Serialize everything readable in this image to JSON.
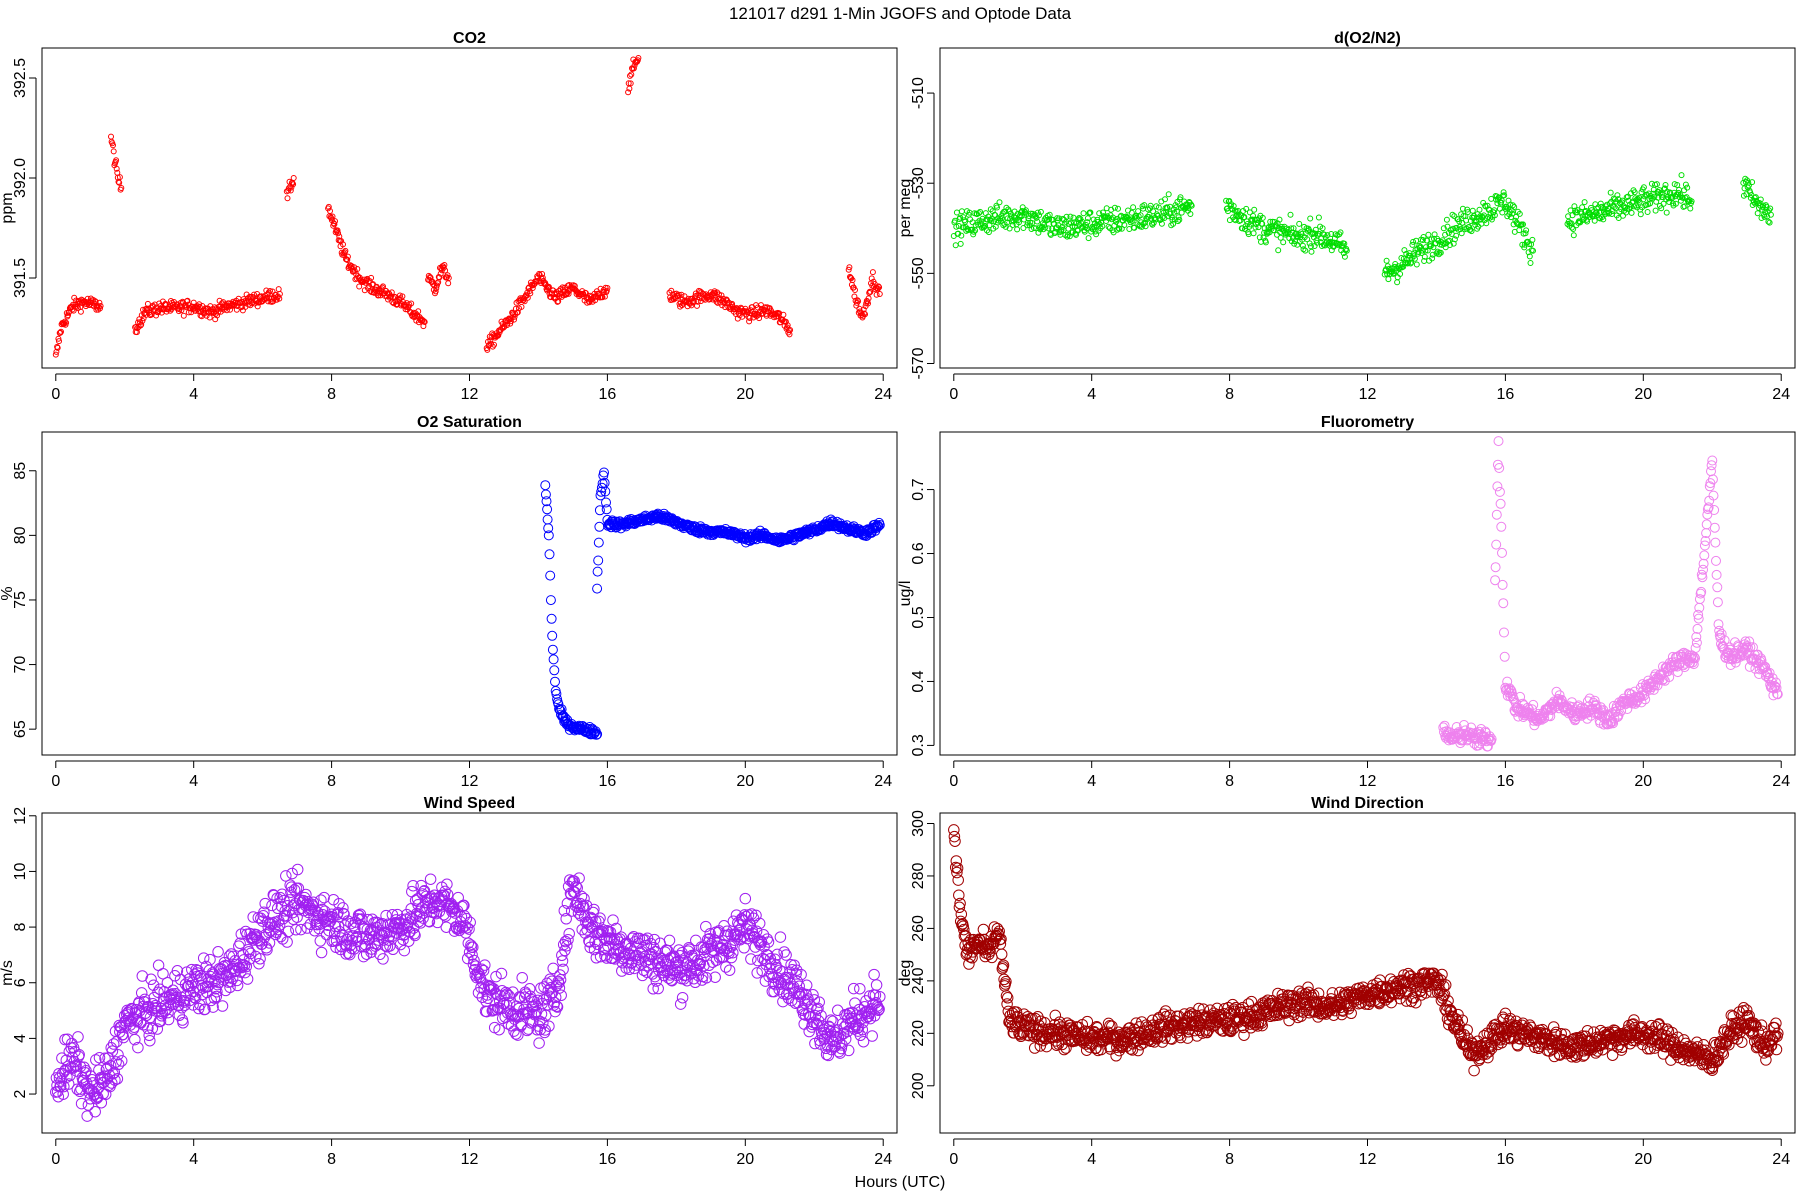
{
  "figure": {
    "title": "121017   d291   1-Min  JGOFS and Optode Data",
    "xlabel": "Hours (UTC)"
  },
  "chart_data": [
    {
      "type": "scatter",
      "title": "CO2",
      "ylabel": "ppm",
      "color": "#ff0000",
      "xlim": [
        -0.4,
        24.4
      ],
      "ylim": [
        391.05,
        392.65
      ],
      "xticks": [
        0,
        4,
        8,
        12,
        16,
        20,
        24
      ],
      "yticks": [
        391.5,
        392.0,
        392.5
      ],
      "ytick_labels": [
        "391.5",
        "392.0",
        "392.5"
      ],
      "series_segments": [
        {
          "x": [
            0,
            0.15,
            0.3,
            0.5,
            0.8,
            1.0,
            1.3
          ],
          "y": [
            391.1,
            391.25,
            391.3,
            391.36,
            391.38,
            391.37,
            391.36
          ]
        },
        {
          "x": [
            1.6,
            1.7,
            1.8,
            1.9
          ],
          "y": [
            392.2,
            392.1,
            392.0,
            391.95
          ]
        },
        {
          "x": [
            2.3,
            2.6,
            3.0,
            3.5,
            4.0,
            4.5,
            5.0,
            5.5,
            6.0,
            6.5
          ],
          "y": [
            391.25,
            391.33,
            391.35,
            391.35,
            391.36,
            391.33,
            391.36,
            391.38,
            391.4,
            391.42
          ]
        },
        {
          "x": [
            6.7,
            6.8,
            6.9
          ],
          "y": [
            391.9,
            391.95,
            392.0
          ]
        },
        {
          "x": [
            7.9,
            8.1,
            8.4,
            8.8,
            9.2,
            9.6,
            10.0,
            10.4,
            10.7
          ],
          "y": [
            391.85,
            391.75,
            391.6,
            391.5,
            391.45,
            391.42,
            391.38,
            391.32,
            391.28
          ]
        },
        {
          "x": [
            10.8,
            11.0,
            11.2,
            11.4
          ],
          "y": [
            391.5,
            391.45,
            391.55,
            391.5
          ]
        },
        {
          "x": [
            12.5,
            12.8,
            13.2,
            13.6,
            14.0,
            14.5,
            15.0,
            15.5,
            16.0
          ],
          "y": [
            391.15,
            391.22,
            391.3,
            391.4,
            391.5,
            391.4,
            391.45,
            391.38,
            391.45
          ]
        },
        {
          "x": [
            16.6,
            16.75,
            16.9
          ],
          "y": [
            392.45,
            392.55,
            392.6
          ]
        },
        {
          "x": [
            17.8,
            18.2,
            18.6,
            19.0,
            19.4,
            19.8,
            20.2,
            20.6,
            21.0,
            21.3
          ],
          "y": [
            391.42,
            391.38,
            391.4,
            391.42,
            391.38,
            391.33,
            391.32,
            391.34,
            391.3,
            391.24
          ]
        },
        {
          "x": [
            23.0,
            23.2,
            23.4,
            23.7,
            23.9
          ],
          "y": [
            391.55,
            391.4,
            391.3,
            391.5,
            391.42
          ]
        }
      ]
    },
    {
      "type": "scatter",
      "title": "d(O2/N2)",
      "ylabel": "per meg",
      "color": "#00dd00",
      "xlim": [
        -0.4,
        24.4
      ],
      "ylim": [
        -571,
        -500
      ],
      "xticks": [
        0,
        4,
        8,
        12,
        16,
        20,
        24
      ],
      "yticks": [
        -570,
        -550,
        -530,
        -510
      ],
      "ytick_labels": [
        "-570",
        "-550",
        "-530",
        "-510"
      ],
      "series_segments": [
        {
          "x": [
            0,
            1.0,
            2.0,
            3.0,
            4.0,
            5.0,
            6.0,
            6.9
          ],
          "y": [
            -540,
            -538,
            -537,
            -540,
            -539,
            -538,
            -537,
            -535
          ]
        },
        {
          "x": [
            7.9,
            8.5,
            9.0,
            9.5,
            10.0,
            10.5,
            11.0,
            11.4
          ],
          "y": [
            -535,
            -538,
            -540,
            -541,
            -542,
            -541,
            -543,
            -545
          ]
        },
        {
          "x": [
            12.5,
            13.0,
            13.5,
            14.0,
            14.5,
            15.0,
            15.5,
            16.0,
            16.8
          ],
          "y": [
            -550,
            -548,
            -545,
            -543,
            -540,
            -538,
            -536,
            -534,
            -545
          ]
        },
        {
          "x": [
            17.8,
            18.5,
            19.0,
            19.5,
            20.0,
            20.5,
            21.0,
            21.4
          ],
          "y": [
            -538,
            -537,
            -536,
            -535,
            -534,
            -533,
            -532,
            -534
          ]
        },
        {
          "x": [
            22.9,
            23.3,
            23.7
          ],
          "y": [
            -530,
            -535,
            -537
          ]
        }
      ]
    },
    {
      "type": "scatter",
      "title": "O2 Saturation",
      "ylabel": "%",
      "color": "#0000ff",
      "xlim": [
        -0.4,
        24.4
      ],
      "ylim": [
        63,
        88
      ],
      "xticks": [
        0,
        4,
        8,
        12,
        16,
        20,
        24
      ],
      "yticks": [
        65,
        70,
        75,
        80,
        85
      ],
      "ytick_labels": [
        "65",
        "70",
        "75",
        "80",
        "85"
      ],
      "series_segments": [
        {
          "x": [
            14.2,
            14.3,
            14.4,
            14.5,
            14.6,
            14.8,
            15.0,
            15.3,
            15.6,
            15.7
          ],
          "y": [
            83.8,
            80,
            72,
            68,
            66.5,
            65.5,
            65.2,
            65.0,
            64.8,
            64.6
          ]
        },
        {
          "x": [
            15.7,
            15.8,
            15.9,
            16.0,
            16.3,
            17.0,
            17.5,
            18.0,
            18.5,
            19.0,
            19.5,
            20.0,
            20.5,
            21.0,
            21.5,
            22.0,
            22.5,
            23.0,
            23.5,
            23.9
          ],
          "y": [
            76,
            83,
            85,
            81,
            80.8,
            81.2,
            81.5,
            81,
            80.5,
            80.3,
            80.2,
            79.8,
            80,
            79.6,
            80,
            80.4,
            81,
            80.5,
            80.2,
            80.8
          ]
        }
      ]
    },
    {
      "type": "scatter",
      "title": "Fluorometry",
      "ylabel": "ug/l",
      "color": "#ee82ee",
      "xlim": [
        -0.4,
        24.4
      ],
      "ylim": [
        0.285,
        0.79
      ],
      "xticks": [
        0,
        4,
        8,
        12,
        16,
        20,
        24
      ],
      "yticks": [
        0.3,
        0.4,
        0.5,
        0.6,
        0.7
      ],
      "ytick_labels": [
        "0.3",
        "0.4",
        "0.5",
        "0.6",
        "0.7"
      ],
      "series_segments": [
        {
          "x": [
            14.2,
            14.5,
            14.8,
            15.1,
            15.4,
            15.6
          ],
          "y": [
            0.32,
            0.31,
            0.32,
            0.31,
            0.31,
            0.31
          ]
        },
        {
          "x": [
            15.7,
            15.8,
            15.9,
            16.0,
            16.3,
            16.7,
            17.0,
            17.5,
            18.0,
            18.5,
            19.0,
            19.5,
            20.0,
            20.5,
            21.0,
            21.5,
            22.0,
            22.2,
            22.5,
            23.0,
            23.5,
            23.9
          ],
          "y": [
            0.55,
            0.78,
            0.6,
            0.4,
            0.36,
            0.35,
            0.34,
            0.37,
            0.35,
            0.36,
            0.34,
            0.37,
            0.38,
            0.41,
            0.43,
            0.44,
            0.74,
            0.47,
            0.44,
            0.45,
            0.42,
            0.38
          ]
        }
      ]
    },
    {
      "type": "scatter",
      "title": "Wind Speed",
      "ylabel": "m/s",
      "color": "#a020f0",
      "xlim": [
        -0.4,
        24.4
      ],
      "ylim": [
        0.6,
        12.1
      ],
      "xticks": [
        0,
        4,
        8,
        12,
        16,
        20,
        24
      ],
      "yticks": [
        2,
        4,
        6,
        8,
        10,
        12
      ],
      "ytick_labels": [
        "2",
        "4",
        "6",
        "8",
        "10",
        "12"
      ],
      "series_segments": [
        {
          "x": [
            0,
            0.5,
            1,
            1.5,
            2,
            3,
            4,
            5,
            6,
            7,
            8,
            9,
            10,
            11,
            11.8,
            12.5,
            13,
            14,
            14.5,
            15,
            15.5,
            16,
            17,
            18,
            19,
            20,
            21,
            22,
            22.5,
            23,
            23.5,
            23.9
          ],
          "y": [
            2.5,
            3.2,
            2.0,
            2.5,
            4.5,
            5.2,
            5.8,
            6.2,
            8.0,
            8.8,
            8.2,
            7.6,
            8.0,
            9.0,
            8.3,
            5.5,
            5.2,
            4.8,
            5.5,
            9.5,
            8.0,
            7.5,
            7.0,
            6.5,
            7.0,
            8.0,
            6.5,
            5.0,
            3.8,
            4.5,
            5.0,
            5.5
          ]
        }
      ]
    },
    {
      "type": "scatter",
      "title": "Wind Direction",
      "ylabel": "deg",
      "color": "#a00000",
      "xlim": [
        -0.4,
        24.4
      ],
      "ylim": [
        182,
        304
      ],
      "xticks": [
        0,
        4,
        8,
        12,
        16,
        20,
        24
      ],
      "yticks": [
        200,
        220,
        240,
        260,
        280,
        300
      ],
      "ytick_labels": [
        "200",
        "220",
        "240",
        "260",
        "280",
        "300"
      ],
      "series_segments": [
        {
          "x": [
            0,
            0.2,
            0.4,
            0.7,
            1.0,
            1.3,
            1.6,
            2,
            3,
            4,
            5,
            6,
            7,
            8,
            9,
            10,
            11,
            12,
            13,
            14,
            14.5,
            15,
            16,
            17,
            18,
            19,
            20,
            21,
            21.5,
            22,
            22.5,
            23,
            23.5,
            23.9
          ],
          "y": [
            295,
            265,
            250,
            255,
            250,
            260,
            225,
            222,
            220,
            218,
            218,
            222,
            224,
            225,
            228,
            232,
            230,
            235,
            238,
            240,
            225,
            212,
            222,
            218,
            215,
            218,
            220,
            215,
            212,
            210,
            220,
            225,
            215,
            220
          ]
        }
      ]
    }
  ]
}
